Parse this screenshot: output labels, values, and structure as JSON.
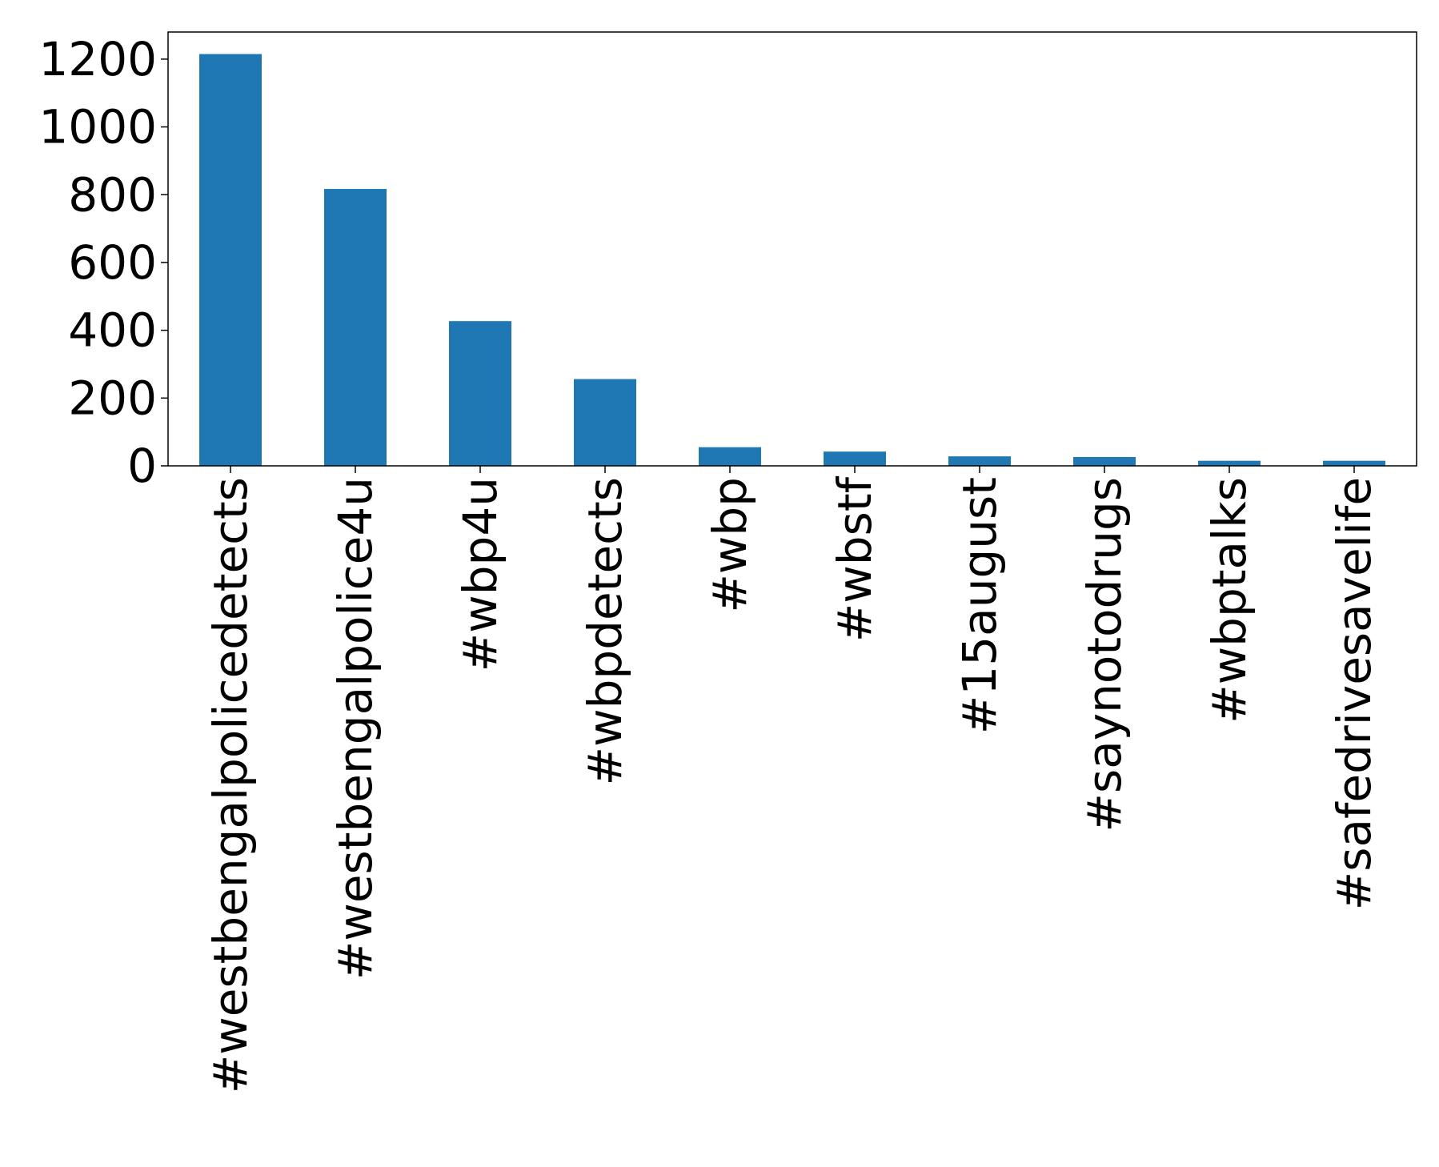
{
  "chart_data": {
    "type": "bar",
    "categories": [
      "#westbengalpolicedetects",
      "#westbengalpolice4u",
      "#wbp4u",
      "#wbpdetects",
      "#wbp",
      "#wbstf",
      "#15august",
      "#saynotodrugs",
      "#wbptalks",
      "#safedrivesavelife"
    ],
    "values": [
      1215,
      817,
      427,
      256,
      55,
      42,
      28,
      26,
      15,
      15
    ],
    "title": "",
    "xlabel": "",
    "ylabel": "",
    "ylim": [
      0,
      1280
    ],
    "yticks": [
      0,
      200,
      400,
      600,
      800,
      1000,
      1200
    ],
    "grid": false,
    "legend": "none",
    "bar_color": "#1f77b4"
  }
}
